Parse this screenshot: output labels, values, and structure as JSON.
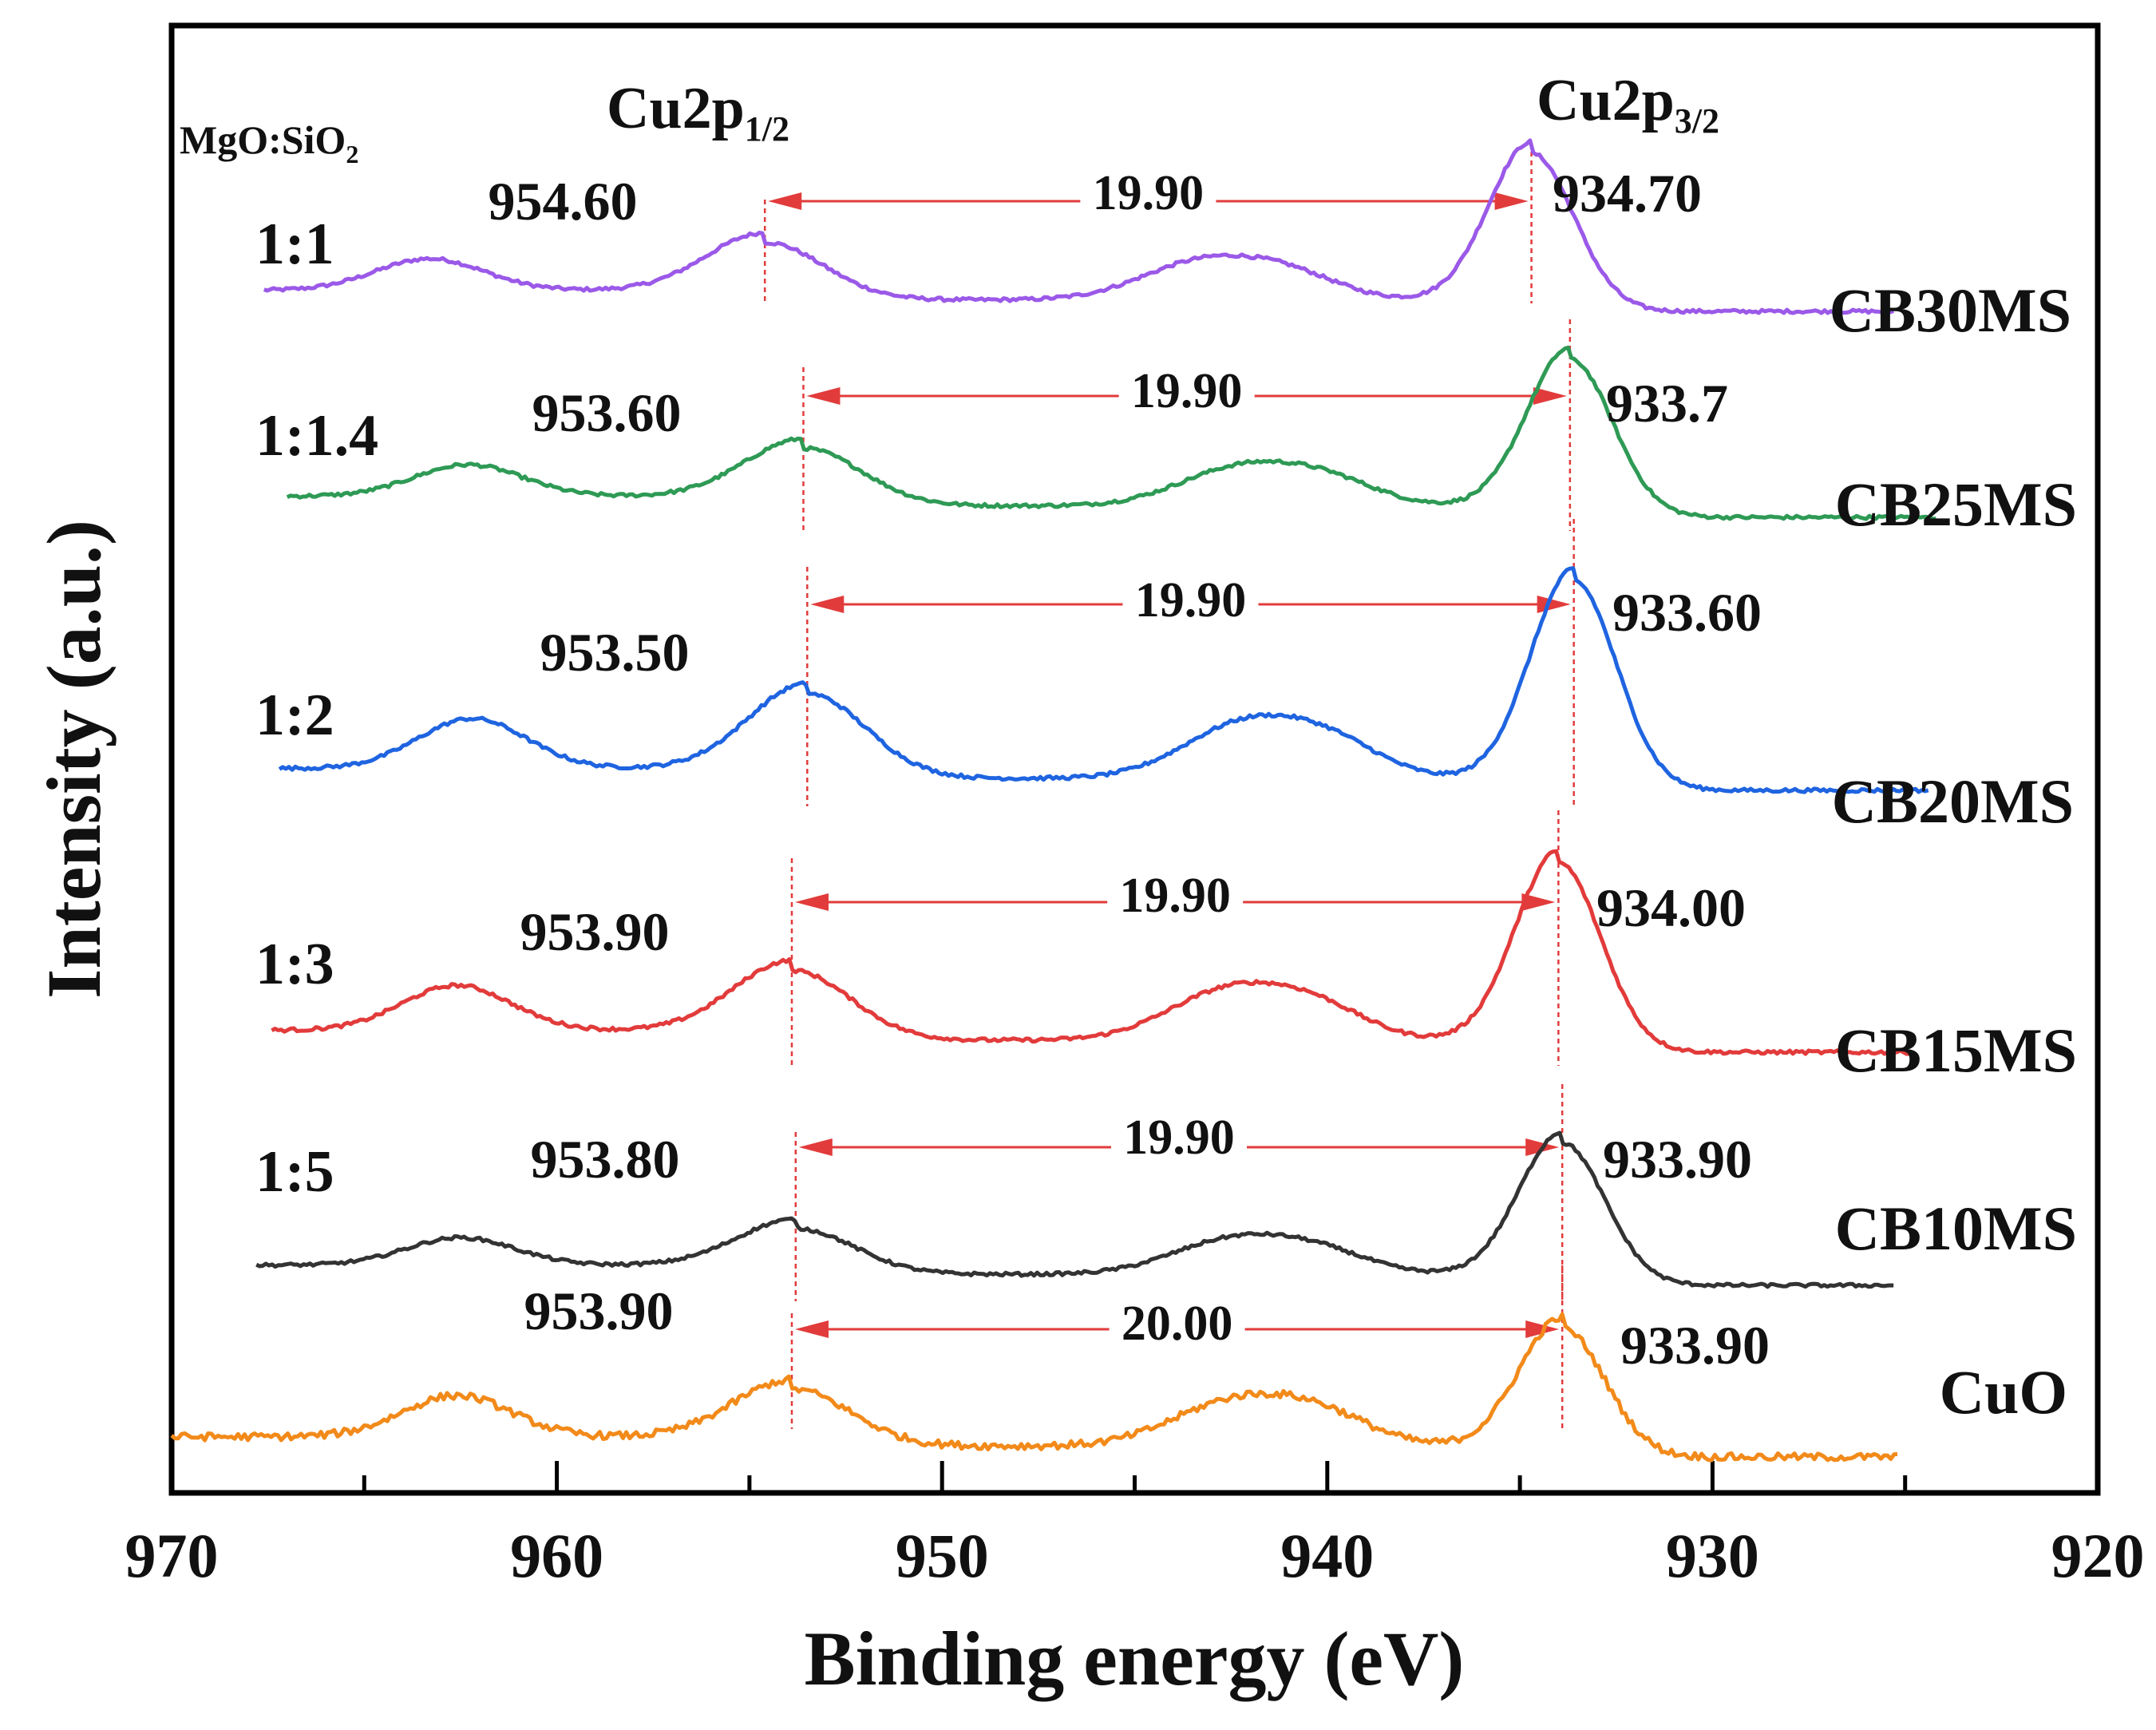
{
  "chart_data": {
    "type": "line",
    "title": "",
    "xlabel": "Binding energy (eV)",
    "ylabel": "Intensity (a.u.)",
    "xlim": [
      970,
      920
    ],
    "x_reversed": true,
    "x_ticks": [
      970,
      960,
      950,
      940,
      930,
      920
    ],
    "x_tick_labels": [
      "970",
      "960",
      "950",
      "940",
      "930",
      "920"
    ],
    "y_ticks_shown": false,
    "grid": false,
    "ratio_header": {
      "text": "MgO:SiO",
      "sub": "2"
    },
    "peak_headers": [
      {
        "base": "Cu2p",
        "sub": "1/2",
        "energy": 953.9
      },
      {
        "base": "Cu2p",
        "sub": "3/2",
        "energy": 934.0
      }
    ],
    "series": [
      {
        "name": "CB30MS",
        "ratio": "1:1",
        "color": "#9b59e8",
        "x_range": [
          967.6,
          925.3
        ],
        "peak_1_2": 954.6,
        "peak_1_2_label": "954.60",
        "peak_3_2": 934.7,
        "peak_3_2_label": "934.70",
        "separation": "19.90",
        "baseline": 1.0,
        "intensities": {
          "p32": 1.65,
          "p12": 0.6,
          "sat1": 0.33,
          "sat2": 0.4,
          "sat3": 0.24
        }
      },
      {
        "name": "CB25MS",
        "ratio": "1:1.4",
        "color": "#2e9a55",
        "x_range": [
          967.0,
          924.2
        ],
        "peak_1_2": 953.6,
        "peak_1_2_label": "953.60",
        "peak_3_2": 933.7,
        "peak_3_2_label": "933.7",
        "separation": "19.90",
        "baseline": 1.0,
        "intensities": {
          "p32": 1.65,
          "p12": 0.6,
          "sat1": 0.33,
          "sat2": 0.4,
          "sat3": 0.24
        }
      },
      {
        "name": "CB20MS",
        "ratio": "1:2",
        "color": "#1f64e0",
        "x_range": [
          967.2,
          924.4
        ],
        "peak_1_2": 953.5,
        "peak_1_2_label": "953.50",
        "peak_3_2": 933.6,
        "peak_3_2_label": "933.60",
        "separation": "19.90",
        "baseline": 1.0,
        "intensities": {
          "p32": 2.1,
          "p12": 0.85,
          "sat1": 0.5,
          "sat2": 0.55,
          "sat3": 0.32
        }
      },
      {
        "name": "CB15MS",
        "ratio": "1:3",
        "color": "#e23b3b",
        "x_range": [
          967.4,
          924.8
        ],
        "peak_1_2": 953.9,
        "peak_1_2_label": "953.90",
        "peak_3_2": 934.0,
        "peak_3_2_label": "934.00",
        "separation": "19.90",
        "baseline": 1.0,
        "intensities": {
          "p32": 1.9,
          "p12": 0.7,
          "sat1": 0.45,
          "sat2": 0.5,
          "sat3": 0.3
        }
      },
      {
        "name": "CB10MS",
        "ratio": "1:5",
        "color": "#333333",
        "x_range": [
          967.8,
          925.3
        ],
        "peak_1_2": 953.8,
        "peak_1_2_label": "953.80",
        "peak_3_2": 933.9,
        "peak_3_2_label": "933.90",
        "separation": "19.90",
        "baseline": 1.0,
        "intensities": {
          "p32": 1.55,
          "p12": 0.5,
          "sat1": 0.3,
          "sat2": 0.38,
          "sat3": 0.22
        }
      },
      {
        "name": "CuO",
        "ratio": "",
        "color": "#f28a1a",
        "x_range": [
          970.0,
          925.2
        ],
        "peak_1_2": 953.9,
        "peak_1_2_label": "953.90",
        "peak_3_2": 933.9,
        "peak_3_2_label": "933.90",
        "separation": "20.00",
        "baseline": 1.0,
        "intensities": {
          "p32": 1.4,
          "p12": 0.62,
          "sat1": 0.45,
          "sat2": 0.48,
          "sat3": 0.32
        }
      }
    ]
  }
}
